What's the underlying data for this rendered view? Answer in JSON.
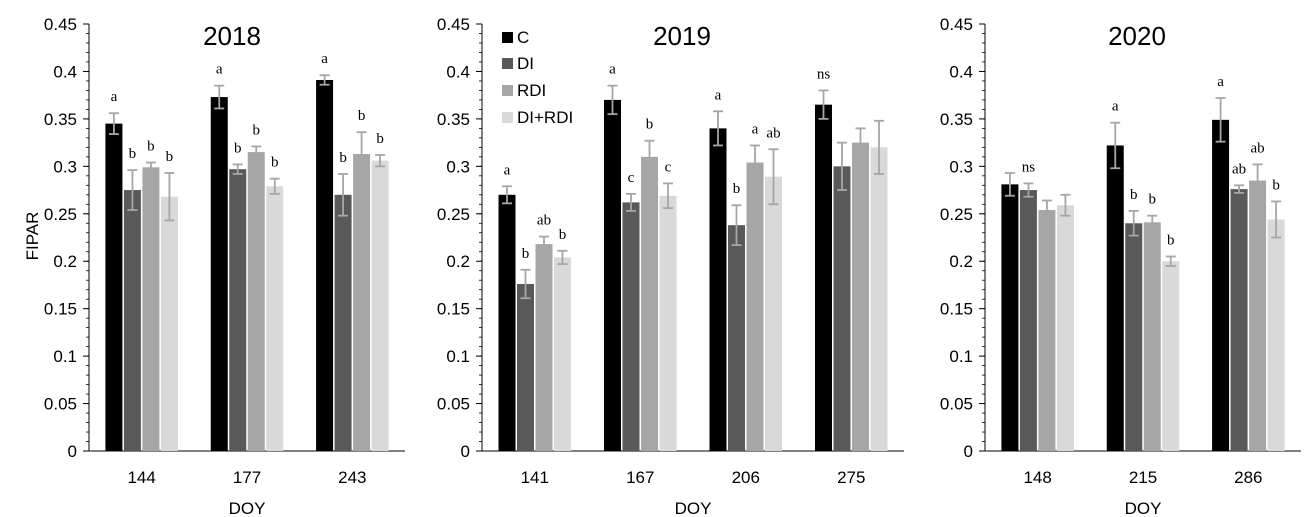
{
  "colors": {
    "C": "#000000",
    "DI": "#595959",
    "RDI": "#a6a6a6",
    "DI+RDI": "#d9d9d9",
    "error_bar": "#a6a6a6"
  },
  "legend": {
    "placement": "top-left of 2019 panel",
    "entries": [
      "C",
      "DI",
      "RDI",
      "DI+RDI"
    ]
  },
  "chart_data": [
    {
      "type": "bar",
      "title": "2018",
      "xlabel": "DOY",
      "ylabel": "FIPAR",
      "ylim": [
        0,
        0.45
      ],
      "yticks": [
        "0",
        "0.05",
        "0.1",
        "0.15",
        "0.2",
        "0.25",
        "0.3",
        "0.35",
        "0.4",
        "0.45"
      ],
      "categories": [
        "144",
        "177",
        "243"
      ],
      "series": [
        {
          "name": "C",
          "values": [
            0.345,
            0.373,
            0.391
          ],
          "errors": [
            0.011,
            0.012,
            0.005
          ],
          "labels": [
            "a",
            "a",
            "a"
          ]
        },
        {
          "name": "DI",
          "values": [
            0.275,
            0.297,
            0.27
          ],
          "errors": [
            0.021,
            0.005,
            0.022
          ],
          "labels": [
            "b",
            "b",
            "b"
          ]
        },
        {
          "name": "RDI",
          "values": [
            0.299,
            0.315,
            0.313
          ],
          "errors": [
            0.005,
            0.006,
            0.023
          ],
          "labels": [
            "b",
            "b",
            "b"
          ]
        },
        {
          "name": "DI+RDI",
          "values": [
            0.268,
            0.279,
            0.306
          ],
          "errors": [
            0.025,
            0.008,
            0.006
          ],
          "labels": [
            "b",
            "b",
            "b"
          ]
        }
      ]
    },
    {
      "type": "bar",
      "title": "2019",
      "xlabel": "DOY",
      "ylabel": "",
      "ylim": [
        0,
        0.45
      ],
      "yticks": [
        "0",
        "0.05",
        "0.1",
        "0.15",
        "0.2",
        "0.25",
        "0.3",
        "0.35",
        "0.4",
        "0.45"
      ],
      "categories": [
        "141",
        "167",
        "206",
        "275"
      ],
      "series": [
        {
          "name": "C",
          "values": [
            0.27,
            0.37,
            0.34,
            0.365
          ],
          "errors": [
            0.009,
            0.015,
            0.018,
            0.015
          ],
          "labels": [
            "a",
            "a",
            "a",
            "ns"
          ]
        },
        {
          "name": "DI",
          "values": [
            0.176,
            0.262,
            0.238,
            0.3
          ],
          "errors": [
            0.015,
            0.009,
            0.021,
            0.025
          ],
          "labels": [
            "b",
            "c",
            "b",
            ""
          ]
        },
        {
          "name": "RDI",
          "values": [
            0.218,
            0.31,
            0.304,
            0.325
          ],
          "errors": [
            0.008,
            0.017,
            0.018,
            0.015
          ],
          "labels": [
            "ab",
            "b",
            "a",
            ""
          ]
        },
        {
          "name": "DI+RDI",
          "values": [
            0.204,
            0.269,
            0.289,
            0.32
          ],
          "errors": [
            0.007,
            0.013,
            0.029,
            0.028
          ],
          "labels": [
            "b",
            "c",
            "ab",
            ""
          ]
        }
      ]
    },
    {
      "type": "bar",
      "title": "2020",
      "xlabel": "DOY",
      "ylabel": "",
      "ylim": [
        0,
        0.45
      ],
      "yticks": [
        "0",
        "0.05",
        "0.1",
        "0.15",
        "0.2",
        "0.25",
        "0.3",
        "0.35",
        "0.4",
        "0.45"
      ],
      "categories": [
        "148",
        "215",
        "286"
      ],
      "series": [
        {
          "name": "C",
          "values": [
            0.281,
            0.322,
            0.349
          ],
          "errors": [
            0.012,
            0.024,
            0.023
          ],
          "labels": [
            "",
            "a",
            "a"
          ]
        },
        {
          "name": "DI",
          "values": [
            0.275,
            0.24,
            0.276
          ],
          "errors": [
            0.007,
            0.013,
            0.004
          ],
          "labels": [
            "ns",
            "b",
            "ab"
          ]
        },
        {
          "name": "RDI",
          "values": [
            0.254,
            0.241,
            0.285
          ],
          "errors": [
            0.01,
            0.007,
            0.017
          ],
          "labels": [
            "",
            "b",
            "ab"
          ]
        },
        {
          "name": "DI+RDI",
          "values": [
            0.259,
            0.2,
            0.244
          ],
          "errors": [
            0.011,
            0.005,
            0.019
          ],
          "labels": [
            "",
            "b",
            "b"
          ]
        }
      ]
    }
  ]
}
